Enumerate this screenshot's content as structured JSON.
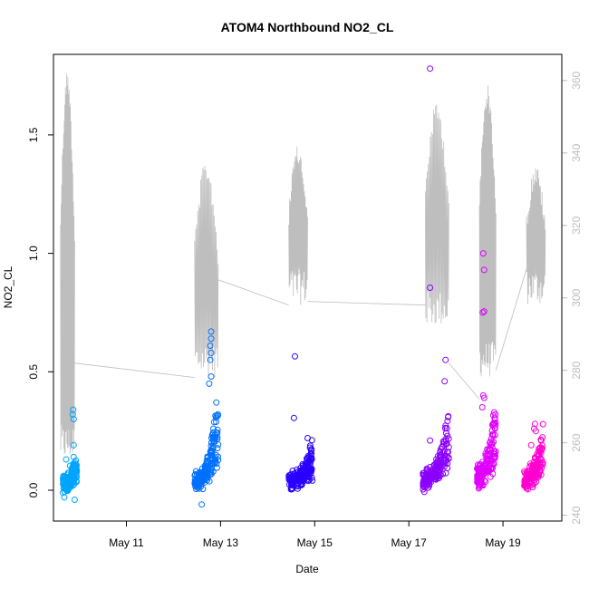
{
  "chart_data": {
    "type": "scatter",
    "title": "ATOM4 Northbound NO2_CL",
    "xlabel": "Date",
    "ylabel": "NO2_CL",
    "x_unit": "day of May",
    "xlim": [
      9.45,
      20.25
    ],
    "ylim": [
      -0.13,
      1.84
    ],
    "y2lim": [
      238.4,
      367.2
    ],
    "x_ticks": [
      {
        "value": 11,
        "label": "May 11"
      },
      {
        "value": 13,
        "label": "May 13"
      },
      {
        "value": 15,
        "label": "May 15"
      },
      {
        "value": 17,
        "label": "May 17"
      },
      {
        "value": 19,
        "label": "May 19"
      }
    ],
    "y_ticks": [
      {
        "value": 0.0,
        "label": "0.0"
      },
      {
        "value": 0.5,
        "label": "0.5"
      },
      {
        "value": 1.0,
        "label": "1.0"
      },
      {
        "value": 1.5,
        "label": "1.5"
      }
    ],
    "y2_ticks": [
      {
        "value": 240,
        "label": "240"
      },
      {
        "value": 260,
        "label": "260"
      },
      {
        "value": 280,
        "label": "280"
      },
      {
        "value": 300,
        "label": "300"
      },
      {
        "value": 320,
        "label": "320"
      },
      {
        "value": 340,
        "label": "340"
      },
      {
        "value": 360,
        "label": "360"
      }
    ],
    "grid": false,
    "legend": "none",
    "line_color": "#bebebe",
    "scatter_groups": [
      {
        "color": "#00a5ff",
        "x_range": [
          9.65,
          9.95
        ],
        "baseline": 0.03,
        "spread": 0.035,
        "peak": 0.14,
        "outliers": [
          [
            9.87,
            0.34
          ],
          [
            9.86,
            0.32
          ],
          [
            9.88,
            0.3
          ],
          [
            9.88,
            0.19
          ],
          [
            9.72,
            0.13
          ],
          [
            9.9,
            -0.04
          ],
          [
            9.68,
            -0.03
          ]
        ]
      },
      {
        "color": "#0070ff",
        "x_range": [
          12.45,
          12.95
        ],
        "baseline": 0.035,
        "spread": 0.04,
        "peak": 0.4,
        "outliers": [
          [
            12.8,
            0.67
          ],
          [
            12.8,
            0.64
          ],
          [
            12.78,
            0.61
          ],
          [
            12.8,
            0.58
          ],
          [
            12.78,
            0.55
          ],
          [
            12.8,
            0.48
          ],
          [
            12.76,
            0.45
          ],
          [
            12.6,
            -0.06
          ],
          [
            12.48,
            0.08
          ]
        ]
      },
      {
        "color": "#2a00ff",
        "x_range": [
          14.45,
          14.95
        ],
        "baseline": 0.04,
        "spread": 0.04,
        "peak": 0.18,
        "outliers": [
          [
            14.58,
            0.565
          ],
          [
            14.56,
            0.305
          ],
          [
            14.85,
            0.22
          ],
          [
            14.9,
            0.18
          ]
        ]
      },
      {
        "color": "#8a00ff",
        "x_range": [
          17.3,
          17.85
        ],
        "baseline": 0.04,
        "spread": 0.04,
        "peak": 0.35,
        "outliers": [
          [
            17.45,
            1.78
          ],
          [
            17.45,
            0.855
          ],
          [
            17.78,
            0.55
          ],
          [
            17.76,
            0.46
          ],
          [
            17.45,
            0.21
          ],
          [
            17.62,
            0.08
          ]
        ]
      },
      {
        "color": "#e000ff",
        "x_range": [
          18.45,
          18.85
        ],
        "baseline": 0.06,
        "spread": 0.05,
        "peak": 0.4,
        "outliers": [
          [
            18.58,
            1.0
          ],
          [
            18.6,
            0.93
          ],
          [
            18.57,
            0.75
          ],
          [
            18.6,
            0.755
          ],
          [
            18.58,
            0.4
          ],
          [
            18.6,
            0.39
          ],
          [
            18.56,
            0.35
          ]
        ]
      },
      {
        "color": "#ff00d0",
        "x_range": [
          19.45,
          19.85
        ],
        "baseline": 0.04,
        "spread": 0.04,
        "peak": 0.28,
        "outliers": [
          [
            19.68,
            0.28
          ],
          [
            19.66,
            0.26
          ],
          [
            19.7,
            0.25
          ],
          [
            19.6,
            0.19
          ]
        ]
      }
    ],
    "line_segments": [
      {
        "x_range": [
          9.6,
          9.9
        ],
        "base": 255,
        "max": 363
      },
      {
        "x_range": [
          12.45,
          12.95
        ],
        "base": 278,
        "max": 338
      },
      {
        "x_range": [
          14.45,
          14.85
        ],
        "base": 298,
        "max": 342
      },
      {
        "x_range": [
          17.35,
          17.85
        ],
        "base": 292,
        "max": 354
      },
      {
        "x_range": [
          18.5,
          18.85
        ],
        "base": 278,
        "max": 359
      },
      {
        "x_range": [
          19.5,
          19.9
        ],
        "base": 298,
        "max": 337
      }
    ],
    "line_connectors": [
      [
        [
          9.9,
          282
        ],
        [
          12.45,
          278
        ]
      ],
      [
        [
          12.95,
          305
        ],
        [
          14.45,
          298
        ]
      ],
      [
        [
          14.85,
          299
        ],
        [
          17.35,
          298
        ]
      ],
      [
        [
          17.85,
          282
        ],
        [
          18.5,
          272
        ]
      ],
      [
        [
          18.85,
          280
        ],
        [
          19.5,
          308
        ]
      ]
    ]
  }
}
